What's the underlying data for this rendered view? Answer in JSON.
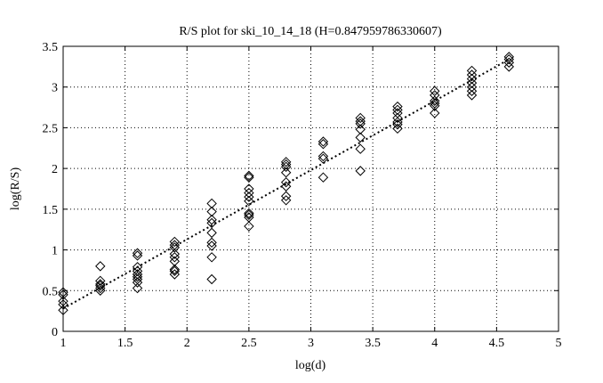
{
  "chart_data": {
    "type": "scatter",
    "title": "R/S plot for ski_10_14_18 (H=0.847959786330607)",
    "xlabel": "log(d)",
    "ylabel": "log(R/S)",
    "xlim": [
      1,
      5
    ],
    "ylim": [
      0,
      3.5
    ],
    "xticks": [
      "1",
      "1.5",
      "2",
      "2.5",
      "3",
      "3.5",
      "4",
      "4.5",
      "5"
    ],
    "yticks": [
      "0",
      "0.5",
      "1",
      "1.5",
      "2",
      "2.5",
      "3",
      "3.5"
    ],
    "grid": true,
    "marker": "diamond",
    "series": [
      {
        "points": [
          [
            1.0,
            0.26
          ],
          [
            1.0,
            0.33
          ],
          [
            1.0,
            0.37
          ],
          [
            1.0,
            0.45
          ],
          [
            1.0,
            0.48
          ],
          [
            1.3,
            0.5
          ],
          [
            1.3,
            0.53
          ],
          [
            1.3,
            0.56
          ],
          [
            1.3,
            0.58
          ],
          [
            1.3,
            0.62
          ],
          [
            1.3,
            0.8
          ],
          [
            1.6,
            0.53
          ],
          [
            1.6,
            0.6
          ],
          [
            1.6,
            0.64
          ],
          [
            1.6,
            0.67
          ],
          [
            1.6,
            0.7
          ],
          [
            1.6,
            0.74
          ],
          [
            1.6,
            0.79
          ],
          [
            1.6,
            0.93
          ],
          [
            1.6,
            0.96
          ],
          [
            1.9,
            0.7
          ],
          [
            1.9,
            0.74
          ],
          [
            1.9,
            0.76
          ],
          [
            1.9,
            0.86
          ],
          [
            1.9,
            0.91
          ],
          [
            1.9,
            0.95
          ],
          [
            1.9,
            1.03
          ],
          [
            1.9,
            1.06
          ],
          [
            1.9,
            1.1
          ],
          [
            2.2,
            0.64
          ],
          [
            2.2,
            0.91
          ],
          [
            2.2,
            1.05
          ],
          [
            2.2,
            1.09
          ],
          [
            2.2,
            1.21
          ],
          [
            2.2,
            1.33
          ],
          [
            2.2,
            1.37
          ],
          [
            2.2,
            1.47
          ],
          [
            2.2,
            1.57
          ],
          [
            2.5,
            1.29
          ],
          [
            2.5,
            1.4
          ],
          [
            2.5,
            1.43
          ],
          [
            2.5,
            1.45
          ],
          [
            2.5,
            1.6
          ],
          [
            2.5,
            1.65
          ],
          [
            2.5,
            1.7
          ],
          [
            2.5,
            1.75
          ],
          [
            2.5,
            1.89
          ],
          [
            2.5,
            1.91
          ],
          [
            2.8,
            1.61
          ],
          [
            2.8,
            1.66
          ],
          [
            2.8,
            1.78
          ],
          [
            2.8,
            1.83
          ],
          [
            2.8,
            1.95
          ],
          [
            2.8,
            2.02
          ],
          [
            2.8,
            2.05
          ],
          [
            2.8,
            2.08
          ],
          [
            3.1,
            1.89
          ],
          [
            3.1,
            2.12
          ],
          [
            3.1,
            2.15
          ],
          [
            3.1,
            2.3
          ],
          [
            3.1,
            2.33
          ],
          [
            3.4,
            1.97
          ],
          [
            3.4,
            2.24
          ],
          [
            3.4,
            2.38
          ],
          [
            3.4,
            2.48
          ],
          [
            3.4,
            2.55
          ],
          [
            3.4,
            2.58
          ],
          [
            3.4,
            2.62
          ],
          [
            3.7,
            2.49
          ],
          [
            3.7,
            2.54
          ],
          [
            3.7,
            2.57
          ],
          [
            3.7,
            2.62
          ],
          [
            3.7,
            2.68
          ],
          [
            3.7,
            2.72
          ],
          [
            3.7,
            2.76
          ],
          [
            4.0,
            2.68
          ],
          [
            4.0,
            2.77
          ],
          [
            4.0,
            2.8
          ],
          [
            4.0,
            2.83
          ],
          [
            4.0,
            2.9
          ],
          [
            4.0,
            2.95
          ],
          [
            4.3,
            2.9
          ],
          [
            4.3,
            2.95
          ],
          [
            4.3,
            3.0
          ],
          [
            4.3,
            3.05
          ],
          [
            4.3,
            3.1
          ],
          [
            4.3,
            3.15
          ],
          [
            4.3,
            3.2
          ],
          [
            4.6,
            3.25
          ],
          [
            4.6,
            3.3
          ],
          [
            4.6,
            3.34
          ],
          [
            4.6,
            3.37
          ]
        ]
      }
    ],
    "fit_line": {
      "x": [
        1.0,
        4.6
      ],
      "y": [
        0.28,
        3.34
      ],
      "style": "dotted"
    }
  }
}
